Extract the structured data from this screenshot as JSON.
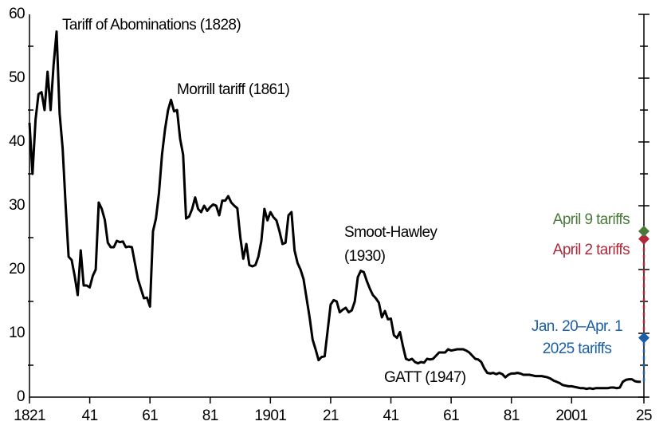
{
  "chart_data": {
    "type": "line",
    "xlim": [
      1821,
      2025
    ],
    "xticks": [
      {
        "value": 1821,
        "label": "1821"
      },
      {
        "value": 1841,
        "label": "41"
      },
      {
        "value": 1861,
        "label": "61"
      },
      {
        "value": 1881,
        "label": "81"
      },
      {
        "value": 1901,
        "label": "1901"
      },
      {
        "value": 1921,
        "label": "21"
      },
      {
        "value": 1941,
        "label": "41"
      },
      {
        "value": 1961,
        "label": "61"
      },
      {
        "value": 1981,
        "label": "81"
      },
      {
        "value": 2001,
        "label": "2001"
      },
      {
        "value": 2025,
        "label": "25"
      }
    ],
    "ylim": [
      0,
      60
    ],
    "yticks": [
      0,
      10,
      20,
      30,
      40,
      50,
      60
    ],
    "yticks_minor": [
      5,
      15,
      25,
      35,
      45,
      55
    ],
    "series": [
      {
        "color": "#000000",
        "x": [
          1821,
          1822,
          1823,
          1824,
          1825,
          1826,
          1827,
          1828,
          1829,
          1830,
          1831,
          1832,
          1833,
          1834,
          1835,
          1836,
          1837,
          1838,
          1839,
          1840,
          1841,
          1842,
          1843,
          1844,
          1845,
          1846,
          1847,
          1848,
          1849,
          1850,
          1851,
          1852,
          1853,
          1854,
          1855,
          1856,
          1857,
          1858,
          1859,
          1860,
          1861,
          1862,
          1863,
          1864,
          1865,
          1866,
          1867,
          1868,
          1869,
          1870,
          1871,
          1872,
          1873,
          1874,
          1875,
          1876,
          1877,
          1878,
          1879,
          1880,
          1881,
          1882,
          1883,
          1884,
          1885,
          1886,
          1887,
          1888,
          1889,
          1890,
          1891,
          1892,
          1893,
          1894,
          1895,
          1896,
          1897,
          1898,
          1899,
          1900,
          1901,
          1902,
          1903,
          1904,
          1905,
          1906,
          1907,
          1908,
          1909,
          1910,
          1911,
          1912,
          1913,
          1914,
          1915,
          1916,
          1917,
          1918,
          1919,
          1920,
          1921,
          1922,
          1923,
          1924,
          1925,
          1926,
          1927,
          1928,
          1929,
          1930,
          1931,
          1932,
          1933,
          1934,
          1935,
          1936,
          1937,
          1938,
          1939,
          1940,
          1941,
          1942,
          1943,
          1944,
          1945,
          1946,
          1947,
          1948,
          1949,
          1950,
          1951,
          1952,
          1953,
          1954,
          1955,
          1956,
          1957,
          1958,
          1959,
          1960,
          1961,
          1962,
          1963,
          1964,
          1965,
          1966,
          1967,
          1968,
          1969,
          1970,
          1971,
          1972,
          1973,
          1974,
          1975,
          1976,
          1977,
          1978,
          1979,
          1980,
          1981,
          1982,
          1983,
          1984,
          1985,
          1986,
          1987,
          1988,
          1989,
          1990,
          1991,
          1992,
          1993,
          1994,
          1995,
          1996,
          1997,
          1998,
          1999,
          2000,
          2001,
          2002,
          2003,
          2004,
          2005,
          2006,
          2007,
          2008,
          2009,
          2010,
          2011,
          2012,
          2013,
          2014,
          2015,
          2016,
          2017,
          2018,
          2019,
          2020,
          2021,
          2022,
          2023,
          2024
        ],
        "values": [
          43,
          35,
          43.5,
          47.5,
          47.8,
          45,
          51,
          45,
          52,
          57.3,
          44.5,
          39,
          30,
          22,
          21.5,
          19,
          16,
          23,
          17.5,
          17.5,
          17.2,
          19,
          20,
          30.5,
          29.5,
          27.8,
          24.2,
          23.5,
          23.5,
          24.5,
          24.3,
          24.4,
          23.5,
          23.6,
          23.5,
          21,
          18.5,
          17,
          15.5,
          15.6,
          14.2,
          26,
          28,
          32,
          38,
          42,
          45,
          46.6,
          44.8,
          45,
          40.5,
          38,
          28,
          28.3,
          29.5,
          31.3,
          29.5,
          29,
          30,
          29.2,
          29.8,
          30.2,
          30,
          28.5,
          30.8,
          30.8,
          31.5,
          30.5,
          30,
          29.6,
          25,
          21.7,
          24,
          20.7,
          20.5,
          20.7,
          22,
          24.5,
          29.5,
          27.7,
          29,
          28.2,
          27.7,
          26,
          24,
          24.2,
          28.5,
          29,
          23,
          21,
          20,
          18.5,
          15.5,
          12.5,
          9,
          7.5,
          5.8,
          6.3,
          6.4,
          10.5,
          14.5,
          15.2,
          15,
          13.3,
          13.7,
          14,
          13.3,
          13.6,
          15,
          18.8,
          19.8,
          19.6,
          18.2,
          17,
          16,
          15.5,
          14.8,
          12.5,
          13.5,
          12.2,
          12.3,
          9.7,
          9.3,
          10.2,
          8,
          6,
          5.8,
          6,
          5.5,
          5.3,
          5.5,
          5.4,
          6,
          5.9,
          6,
          6.5,
          7,
          7,
          7,
          7.5,
          7.3,
          7.4,
          7.5,
          7.5,
          7.5,
          7.3,
          7,
          6.5,
          6,
          5.9,
          5.5,
          4.5,
          3.8,
          3.7,
          3.8,
          3.6,
          3.8,
          3.6,
          3.1,
          3.5,
          3.7,
          3.7,
          3.8,
          3.7,
          3.5,
          3.5,
          3.5,
          3.4,
          3.3,
          3.3,
          3.3,
          3.2,
          3.1,
          2.9,
          2.6,
          2.4,
          2.2,
          1.9,
          1.8,
          1.7,
          1.7,
          1.6,
          1.5,
          1.4,
          1.4,
          1.3,
          1.4,
          1.3,
          1.4,
          1.4,
          1.4,
          1.4,
          1.4,
          1.5,
          1.5,
          1.4,
          1.5,
          2.4,
          2.7,
          2.8,
          2.8,
          2.5,
          2.4,
          2.4
        ]
      }
    ],
    "annotations": [
      {
        "lines": [
          "Tariff of Abominations (1828)"
        ]
      },
      {
        "lines": [
          "Morrill tariff (1861)"
        ]
      },
      {
        "lines": [
          "Smoot-Hawley",
          "(1930)"
        ]
      },
      {
        "lines": [
          "GATT (1947)"
        ]
      }
    ],
    "markers": [
      {
        "lines": [
          "Jan. 20–Apr. 1",
          "2025 tariffs"
        ],
        "x": 2025,
        "value": 9.3,
        "color": "#1a5fa8"
      },
      {
        "lines": [
          "April 2 tariffs"
        ],
        "x": 2025,
        "value": 24.8,
        "color": "#b0273a"
      },
      {
        "lines": [
          "April 9 tariffs"
        ],
        "x": 2025,
        "value": 26,
        "color": "#4a7a3a"
      }
    ]
  }
}
